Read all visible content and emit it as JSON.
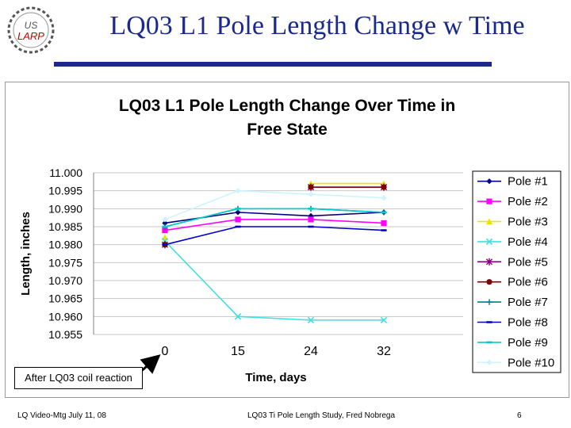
{
  "slide": {
    "title": "LQ03 L1 Pole Length Change w Time",
    "logo_text": "US LARP",
    "callout": "After LQ03 coil reaction",
    "footer_left": "LQ Video-Mtg July 11, 08",
    "footer_center": "LQ03 Ti Pole Length Study, Fred Nobrega",
    "page_number": "6"
  },
  "colors": {
    "title": "#1a2a8c",
    "rule": "#1a2a8c"
  },
  "chart_data": {
    "type": "line",
    "title": "LQ03 L1 Pole Length Change  Over Time in Free State",
    "title_lines": [
      "LQ03 L1 Pole Length Change  Over Time in",
      "Free State"
    ],
    "xlabel": "Time, days",
    "ylabel": "Length, inches",
    "categories": [
      "0",
      "15",
      "24",
      "32"
    ],
    "ylim": [
      10.955,
      11.0
    ],
    "yticks": [
      "11.000",
      "10.995",
      "10.990",
      "10.985",
      "10.980",
      "10.975",
      "10.970",
      "10.965",
      "10.960",
      "10.955"
    ],
    "grid": true,
    "legend_position": "right",
    "series": [
      {
        "name": "Pole #1",
        "color": "#000080",
        "marker": "diamond",
        "values": [
          10.986,
          10.989,
          10.988,
          10.989
        ]
      },
      {
        "name": "Pole #2",
        "color": "#ff00ff",
        "marker": "square",
        "values": [
          10.984,
          10.987,
          10.987,
          10.986
        ]
      },
      {
        "name": "Pole #3",
        "color": "#e6e600",
        "marker": "triangle",
        "values": [
          10.982,
          null,
          10.997,
          10.997
        ]
      },
      {
        "name": "Pole #4",
        "color": "#40e0e0",
        "marker": "x",
        "values": [
          10.981,
          10.96,
          10.959,
          10.959
        ]
      },
      {
        "name": "Pole #5",
        "color": "#800080",
        "marker": "star",
        "values": [
          10.98,
          null,
          10.996,
          10.996
        ]
      },
      {
        "name": "Pole #6",
        "color": "#800000",
        "marker": "circle",
        "values": [
          10.98,
          null,
          10.996,
          10.996
        ]
      },
      {
        "name": "Pole #7",
        "color": "#008080",
        "marker": "plus",
        "values": [
          10.985,
          10.99,
          10.99,
          10.989
        ]
      },
      {
        "name": "Pole #8",
        "color": "#0000cc",
        "marker": "dash",
        "values": [
          10.98,
          10.985,
          10.985,
          10.984
        ]
      },
      {
        "name": "Pole #9",
        "color": "#00cccc",
        "marker": "dash",
        "values": [
          10.985,
          10.99,
          10.99,
          10.989
        ]
      },
      {
        "name": "Pole #10",
        "color": "#ccf4ff",
        "marker": "diamond",
        "values": [
          10.987,
          10.995,
          10.994,
          10.993
        ]
      }
    ]
  }
}
